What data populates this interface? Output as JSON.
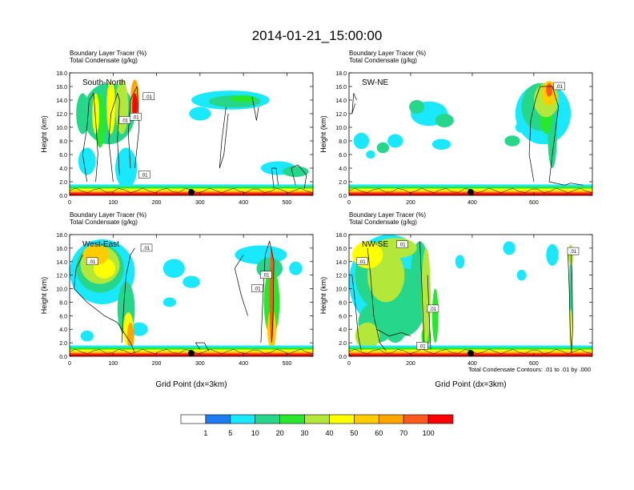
{
  "title": "2014-01-21_15:00:00",
  "footnote": "Total Condensate Contours: .01 to .01 by .000",
  "colors": [
    "#ffffff",
    "#1e7cf2",
    "#19e8ff",
    "#26d68a",
    "#28e82c",
    "#b3e83a",
    "#ffff00",
    "#ffcc00",
    "#ffa500",
    "#ff5a1e",
    "#ff0000"
  ],
  "colorbar_labels": [
    "1",
    "5",
    "10",
    "20",
    "30",
    "40",
    "50",
    "60",
    "70",
    "100"
  ],
  "chart_data": [
    {
      "type": "heatmap",
      "panel": "South-North",
      "title_lines": [
        "Boundary Layer Tracer   (%)",
        "Total Condensate   (g/kg)"
      ],
      "ylabel": "Height (km)",
      "xlabel": "",
      "xlim": [
        0,
        560
      ],
      "ylim": [
        0,
        18
      ],
      "xticks": [
        0,
        100,
        200,
        300,
        400,
        500
      ],
      "yticks": [
        "0.0",
        "2.0",
        "4.0",
        "6.0",
        "8.0",
        "10.0",
        "12.0",
        "14.0",
        "16.0",
        "18.0"
      ],
      "contour_labels": [
        ".01",
        ".01",
        ".01",
        ".01"
      ],
      "marker_x": 280
    },
    {
      "type": "heatmap",
      "panel": "SW-NE",
      "title_lines": [
        "Boundary Layer Tracer   (%)",
        "Total Condensate   (g/kg)"
      ],
      "ylabel": "Height (km)",
      "xlabel": "",
      "xlim": [
        0,
        790
      ],
      "ylim": [
        0,
        18
      ],
      "xticks": [
        0,
        200,
        400,
        600
      ],
      "yticks": [
        "0.0",
        "2.0",
        "4.0",
        "6.0",
        "8.0",
        "10.0",
        "12.0",
        "14.0",
        "16.0",
        "18.0"
      ],
      "contour_labels": [
        ".01"
      ],
      "marker_x": 395
    },
    {
      "type": "heatmap",
      "panel": "West-East",
      "title_lines": [
        "Boundary Layer Tracer   (%)",
        "Total Condensate   (g/kg)"
      ],
      "ylabel": "Height (km)",
      "xlabel": "Grid Point (dx=3km)",
      "xlim": [
        0,
        560
      ],
      "ylim": [
        0,
        18
      ],
      "xticks": [
        0,
        100,
        200,
        300,
        400,
        500
      ],
      "yticks": [
        "0.0",
        "2.0",
        "4.0",
        "6.0",
        "8.0",
        "10.0",
        "12.0",
        "14.0",
        "16.0",
        "18.0"
      ],
      "contour_labels": [
        ".01",
        ".01",
        ".01",
        ".01"
      ],
      "marker_x": 280
    },
    {
      "type": "heatmap",
      "panel": "NW-SE",
      "title_lines": [
        "Boundary Layer Tracer   (%)",
        "Total Condensate   (g/kg)"
      ],
      "ylabel": "Height (km)",
      "xlabel": "Grid Point (dx=3km)",
      "xlim": [
        0,
        790
      ],
      "ylim": [
        0,
        18
      ],
      "xticks": [
        0,
        200,
        400,
        600
      ],
      "yticks": [
        "0.0",
        "2.0",
        "4.0",
        "6.0",
        "8.0",
        "10.0",
        "12.0",
        "14.0",
        "16.0",
        "18.0"
      ],
      "contour_labels": [
        ".01",
        ".01",
        ".01",
        ".01",
        ".01"
      ],
      "marker_x": 395
    }
  ]
}
